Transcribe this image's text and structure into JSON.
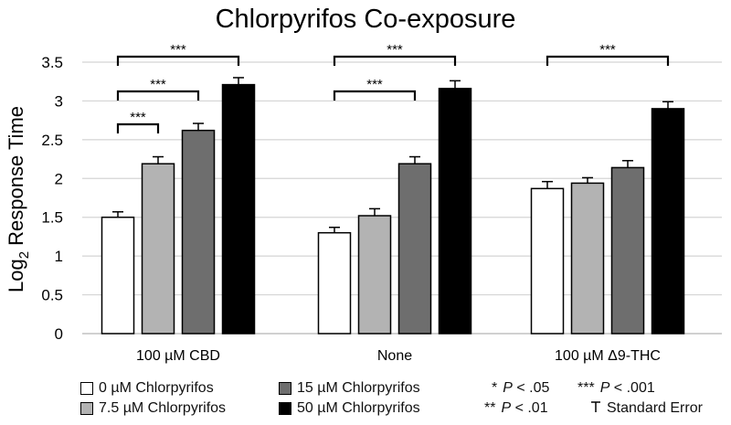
{
  "chart_data": {
    "type": "bar",
    "title": "Chlorpyrifos Co-exposure",
    "ylabel": "Log₂ Response Time",
    "ylim": [
      0,
      3.5
    ],
    "yticks": [
      "0",
      "0.5",
      "1",
      "1.5",
      "2",
      "2.5",
      "3",
      "3.5"
    ],
    "grid": true,
    "categories": [
      "100 µM CBD",
      "None",
      "100 µM Δ9-THC"
    ],
    "series": [
      {
        "name": "0 µM Chlorpyrifos",
        "color": "#ffffff",
        "values": [
          1.5,
          1.3,
          1.87
        ],
        "errors": [
          0.07,
          0.07,
          0.09
        ]
      },
      {
        "name": "7.5 µM Chlorpyrifos",
        "color": "#b3b3b3",
        "values": [
          2.19,
          1.52,
          1.94
        ],
        "errors": [
          0.09,
          0.09,
          0.07
        ]
      },
      {
        "name": "15 µM Chlorpyrifos",
        "color": "#6e6e6e",
        "values": [
          2.62,
          2.19,
          2.14
        ],
        "errors": [
          0.09,
          0.09,
          0.09
        ]
      },
      {
        "name": "50 µM Chlorpyrifos",
        "color": "#000000",
        "values": [
          3.21,
          3.16,
          2.9
        ],
        "errors": [
          0.09,
          0.1,
          0.09
        ]
      }
    ],
    "significance": [
      {
        "category": 0,
        "from": 0,
        "to": 3,
        "label": "***"
      },
      {
        "category": 0,
        "from": 0,
        "to": 2,
        "label": "***"
      },
      {
        "category": 0,
        "from": 0,
        "to": 1,
        "label": "***"
      },
      {
        "category": 1,
        "from": 0,
        "to": 3,
        "label": "***"
      },
      {
        "category": 1,
        "from": 0,
        "to": 2,
        "label": "***"
      },
      {
        "category": 2,
        "from": 0,
        "to": 3,
        "label": "***"
      }
    ]
  },
  "legend": {
    "sig_key": [
      {
        "symbol": "*",
        "p_label": "P",
        "text": " < .05"
      },
      {
        "symbol": "***",
        "p_label": "P",
        "text": " < .001"
      },
      {
        "symbol": "**",
        "p_label": "P",
        "text": " < .01"
      }
    ],
    "standard_error": "Standard Error"
  }
}
